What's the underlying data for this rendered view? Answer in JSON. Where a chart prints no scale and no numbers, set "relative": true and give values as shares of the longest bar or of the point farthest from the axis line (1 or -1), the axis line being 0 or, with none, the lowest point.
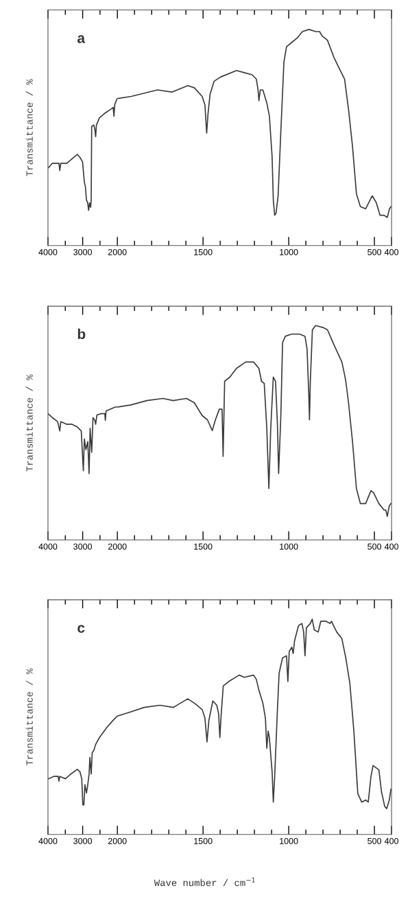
{
  "chart_data": [
    {
      "type": "line",
      "relative": true,
      "annotations": [
        "a"
      ],
      "ylabel": "Transmittance / %",
      "color": "#3a3a3a",
      "xlim": [
        4000,
        2000
      ],
      "xticks": [
        4000,
        {
          "value": 3500,
          "label": null
        },
        3000,
        {
          "value": 2500,
          "label": null
        }
      ],
      "x": [
        3985,
        3872,
        3758,
        3683,
        3660,
        3630,
        3457,
        3306,
        3155,
        3079,
        3004,
        2951,
        2921,
        2891,
        2853,
        2830,
        2800,
        2770,
        2755,
        2740,
        2679,
        2649,
        2626,
        2604,
        2513,
        2362,
        2174,
        2121,
        2098,
        2075,
        2023,
        2000
      ],
      "values": [
        0.53,
        0.56,
        0.56,
        0.56,
        0.51,
        0.56,
        0.56,
        0.59,
        0.62,
        0.6,
        0.57,
        0.43,
        0.4,
        0.31,
        0.29,
        0.24,
        0.29,
        0.26,
        0.31,
        0.81,
        0.82,
        0.79,
        0.74,
        0.82,
        0.87,
        0.9,
        0.93,
        0.94,
        0.88,
        0.96,
        0.99,
        1.0
      ]
    },
    {
      "type": "line",
      "relative": true,
      "color": "#3a3a3a",
      "xlim": [
        2000,
        400
      ],
      "xticks": [
        2000,
        {
          "value": 1900,
          "label": null
        },
        {
          "value": 1800,
          "label": null
        },
        {
          "value": 1700,
          "label": null
        },
        {
          "value": 1600,
          "label": null
        },
        1500,
        {
          "value": 1400,
          "label": null
        },
        {
          "value": 1300,
          "label": null
        },
        {
          "value": 1200,
          "label": null
        },
        {
          "value": 1100,
          "label": null
        },
        1000,
        {
          "value": 900,
          "label": null
        },
        {
          "value": 800,
          "label": null
        },
        {
          "value": 700,
          "label": null
        },
        {
          "value": 600,
          "label": null
        },
        500,
        400
      ],
      "x": [
        2000,
        1920,
        1766,
        1682,
        1589,
        1551,
        1505,
        1489,
        1479,
        1471,
        1459,
        1436,
        1397,
        1305,
        1259,
        1213,
        1189,
        1179,
        1174,
        1166,
        1151,
        1128,
        1113,
        1097,
        1090,
        1082,
        1074,
        1062,
        1046,
        1028,
        1013,
        982,
        951,
        920,
        882,
        843,
        820,
        805,
        774,
        736,
        705,
        674,
        651,
        628,
        605,
        582,
        551,
        513,
        490,
        467,
        444,
        425,
        412,
        404
      ],
      "values": [
        0.68,
        0.69,
        0.72,
        0.71,
        0.74,
        0.73,
        0.69,
        0.65,
        0.52,
        0.61,
        0.7,
        0.76,
        0.78,
        0.81,
        0.8,
        0.79,
        0.77,
        0.72,
        0.67,
        0.72,
        0.72,
        0.66,
        0.6,
        0.41,
        0.21,
        0.14,
        0.15,
        0.23,
        0.53,
        0.85,
        0.92,
        0.94,
        0.96,
        0.99,
        1.0,
        0.99,
        0.99,
        0.97,
        0.95,
        0.87,
        0.82,
        0.77,
        0.63,
        0.46,
        0.24,
        0.18,
        0.17,
        0.23,
        0.2,
        0.14,
        0.14,
        0.13,
        0.17,
        0.18
      ]
    },
    {
      "type": "line",
      "relative": true,
      "annotations": [
        "b"
      ],
      "ylabel": "Transmittance / %",
      "color": "#3a3a3a",
      "xlim": [
        4000,
        2000
      ],
      "xticks": [
        4000,
        {
          "value": 3500,
          "label": null
        },
        3000,
        {
          "value": 2500,
          "label": null
        }
      ],
      "x": [
        4000,
        3872,
        3721,
        3660,
        3630,
        3457,
        3306,
        3155,
        3041,
        2981,
        2951,
        2906,
        2853,
        2815,
        2785,
        2740,
        2702,
        2649,
        2626,
        2589,
        2475,
        2362,
        2347,
        2325,
        2060,
        2000
      ],
      "values": [
        0.95,
        0.92,
        0.89,
        0.82,
        0.89,
        0.87,
        0.87,
        0.85,
        0.82,
        0.52,
        0.76,
        0.68,
        0.74,
        0.5,
        0.84,
        0.66,
        0.92,
        0.9,
        0.87,
        0.94,
        0.95,
        0.95,
        0.9,
        0.97,
        1.0,
        1.0
      ]
    },
    {
      "type": "line",
      "relative": true,
      "color": "#3a3a3a",
      "xlim": [
        2000,
        400
      ],
      "xticks": [
        2000,
        {
          "value": 1900,
          "label": null
        },
        {
          "value": 1800,
          "label": null
        },
        {
          "value": 1700,
          "label": null
        },
        {
          "value": 1600,
          "label": null
        },
        1500,
        {
          "value": 1400,
          "label": null
        },
        {
          "value": 1300,
          "label": null
        },
        {
          "value": 1200,
          "label": null
        },
        {
          "value": 1100,
          "label": null
        },
        1000,
        {
          "value": 900,
          "label": null
        },
        {
          "value": 800,
          "label": null
        },
        {
          "value": 700,
          "label": null
        },
        {
          "value": 600,
          "label": null
        },
        500,
        400
      ],
      "x": [
        2000,
        1920,
        1828,
        1735,
        1674,
        1597,
        1551,
        1505,
        1474,
        1446,
        1428,
        1405,
        1389,
        1383,
        1374,
        1343,
        1305,
        1251,
        1205,
        1174,
        1159,
        1143,
        1128,
        1116,
        1105,
        1090,
        1077,
        1066,
        1059,
        1046,
        1036,
        1020,
        982,
        936,
        905,
        893,
        883,
        879,
        874,
        862,
        843,
        797,
        774,
        736,
        690,
        674,
        667,
        651,
        628,
        605,
        582,
        551,
        520,
        505,
        474,
        444,
        434,
        425,
        413,
        404
      ],
      "values": [
        0.62,
        0.63,
        0.65,
        0.66,
        0.65,
        0.66,
        0.64,
        0.58,
        0.56,
        0.51,
        0.56,
        0.61,
        0.61,
        0.39,
        0.74,
        0.76,
        0.8,
        0.83,
        0.83,
        0.8,
        0.74,
        0.73,
        0.52,
        0.24,
        0.52,
        0.76,
        0.74,
        0.54,
        0.31,
        0.58,
        0.92,
        0.95,
        0.96,
        0.96,
        0.95,
        0.89,
        0.68,
        0.56,
        0.74,
        0.98,
        1.0,
        0.99,
        0.98,
        0.91,
        0.83,
        0.77,
        0.74,
        0.64,
        0.46,
        0.24,
        0.17,
        0.17,
        0.23,
        0.22,
        0.17,
        0.14,
        0.14,
        0.11,
        0.16,
        0.17
      ]
    },
    {
      "type": "line",
      "relative": true,
      "annotations": [
        "c"
      ],
      "ylabel": "Transmittance / %",
      "color": "#3a3a3a",
      "xlim": [
        4000,
        2000
      ],
      "xticks": [
        4000,
        {
          "value": 3500,
          "label": null
        },
        3000,
        {
          "value": 2500,
          "label": null
        }
      ],
      "x": [
        3985,
        3834,
        3706,
        3683,
        3660,
        3494,
        3343,
        3155,
        3079,
        3026,
        2996,
        2966,
        2936,
        2891,
        2853,
        2815,
        2792,
        2755,
        2725,
        2679,
        2626,
        2513,
        2287,
        2136,
        2000
      ],
      "values": [
        0.47,
        0.49,
        0.49,
        0.45,
        0.49,
        0.47,
        0.51,
        0.55,
        0.53,
        0.47,
        0.25,
        0.25,
        0.42,
        0.35,
        0.42,
        0.51,
        0.65,
        0.51,
        0.69,
        0.71,
        0.76,
        0.82,
        0.91,
        0.96,
        1.0
      ]
    },
    {
      "type": "line",
      "relative": true,
      "xlabel": "Wave number / cm$^{−1}$",
      "color": "#3a3a3a",
      "xlim": [
        2000,
        400
      ],
      "xticks": [
        2000,
        {
          "value": 1900,
          "label": null
        },
        {
          "value": 1800,
          "label": null
        },
        {
          "value": 1700,
          "label": null
        },
        {
          "value": 1600,
          "label": null
        },
        1500,
        {
          "value": 1400,
          "label": null
        },
        {
          "value": 1300,
          "label": null
        },
        {
          "value": 1200,
          "label": null
        },
        {
          "value": 1100,
          "label": null
        },
        1000,
        {
          "value": 900,
          "label": null
        },
        {
          "value": 800,
          "label": null
        },
        {
          "value": 700,
          "label": null
        },
        {
          "value": 600,
          "label": null
        },
        500,
        400
      ],
      "x": [
        2000,
        1920,
        1843,
        1751,
        1674,
        1589,
        1551,
        1505,
        1489,
        1477,
        1466,
        1443,
        1420,
        1409,
        1402,
        1394,
        1382,
        1351,
        1289,
        1259,
        1205,
        1189,
        1174,
        1151,
        1136,
        1128,
        1120,
        1113,
        1097,
        1090,
        1082,
        1066,
        1056,
        1036,
        1013,
        1005,
        997,
        982,
        974,
        966,
        943,
        923,
        913,
        905,
        897,
        874,
        863,
        851,
        828,
        813,
        782,
        759,
        751,
        720,
        690,
        667,
        643,
        620,
        597,
        574,
        551,
        536,
        520,
        508,
        474,
        459,
        440,
        428,
        413,
        404
      ],
      "values": [
        0.55,
        0.57,
        0.59,
        0.6,
        0.59,
        0.63,
        0.61,
        0.58,
        0.54,
        0.43,
        0.53,
        0.62,
        0.6,
        0.56,
        0.45,
        0.56,
        0.69,
        0.71,
        0.74,
        0.73,
        0.74,
        0.72,
        0.67,
        0.61,
        0.54,
        0.4,
        0.48,
        0.45,
        0.29,
        0.15,
        0.27,
        0.58,
        0.75,
        0.82,
        0.83,
        0.71,
        0.85,
        0.87,
        0.84,
        0.9,
        0.97,
        0.98,
        0.94,
        0.83,
        0.96,
        0.98,
        1.0,
        0.95,
        0.94,
        0.99,
        0.99,
        0.98,
        0.99,
        0.94,
        0.91,
        0.82,
        0.7,
        0.48,
        0.19,
        0.15,
        0.16,
        0.15,
        0.27,
        0.32,
        0.3,
        0.2,
        0.13,
        0.12,
        0.16,
        0.21
      ]
    }
  ]
}
